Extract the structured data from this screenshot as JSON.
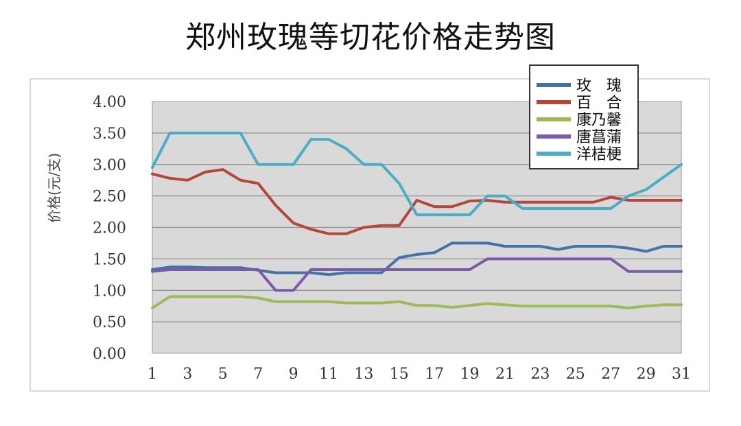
{
  "chart_data": {
    "type": "line",
    "title": "郑州玫瑰等切花价格走势图",
    "xlabel": "",
    "ylabel": "价格(元/支)",
    "x": [
      1,
      2,
      3,
      4,
      5,
      6,
      7,
      8,
      9,
      10,
      11,
      12,
      13,
      14,
      15,
      16,
      17,
      18,
      19,
      20,
      21,
      22,
      23,
      24,
      25,
      26,
      27,
      28,
      29,
      30,
      31
    ],
    "x_tick_labels": [
      "1",
      "3",
      "5",
      "7",
      "9",
      "11",
      "13",
      "15",
      "17",
      "19",
      "21",
      "23",
      "25",
      "27",
      "29",
      "31"
    ],
    "ylim": [
      0,
      4
    ],
    "y_tick_labels": [
      "0.00",
      "0.50",
      "1.00",
      "1.50",
      "2.00",
      "2.50",
      "3.00",
      "3.50",
      "4.00"
    ],
    "grid": true,
    "legend_position": "top-right",
    "series": [
      {
        "name": "玫　瑰",
        "color": "#4472a8",
        "values": [
          1.33,
          1.37,
          1.37,
          1.36,
          1.36,
          1.36,
          1.32,
          1.28,
          1.28,
          1.28,
          1.25,
          1.28,
          1.28,
          1.28,
          1.52,
          1.57,
          1.6,
          1.75,
          1.75,
          1.75,
          1.7,
          1.7,
          1.7,
          1.65,
          1.7,
          1.7,
          1.7,
          1.67,
          1.62,
          1.7,
          1.7
        ]
      },
      {
        "name": "百　合",
        "color": "#b5463a",
        "values": [
          2.85,
          2.78,
          2.75,
          2.88,
          2.92,
          2.75,
          2.7,
          2.35,
          2.07,
          1.97,
          1.9,
          1.9,
          2.0,
          2.03,
          2.03,
          2.43,
          2.33,
          2.33,
          2.42,
          2.43,
          2.4,
          2.4,
          2.4,
          2.4,
          2.4,
          2.4,
          2.48,
          2.43,
          2.43,
          2.43,
          2.43
        ]
      },
      {
        "name": "康乃馨",
        "color": "#9bbb59",
        "values": [
          0.72,
          0.9,
          0.9,
          0.9,
          0.9,
          0.9,
          0.88,
          0.82,
          0.82,
          0.82,
          0.82,
          0.8,
          0.8,
          0.8,
          0.82,
          0.76,
          0.76,
          0.73,
          0.76,
          0.79,
          0.77,
          0.75,
          0.75,
          0.75,
          0.75,
          0.75,
          0.75,
          0.72,
          0.75,
          0.77,
          0.77
        ]
      },
      {
        "name": "唐菖蒲",
        "color": "#7b5ba8",
        "values": [
          1.3,
          1.33,
          1.33,
          1.33,
          1.33,
          1.33,
          1.33,
          1.0,
          1.0,
          1.33,
          1.33,
          1.33,
          1.33,
          1.33,
          1.33,
          1.33,
          1.33,
          1.33,
          1.33,
          1.5,
          1.5,
          1.5,
          1.5,
          1.5,
          1.5,
          1.5,
          1.5,
          1.3,
          1.3,
          1.3,
          1.3
        ]
      },
      {
        "name": "洋桔梗",
        "color": "#4bacc6",
        "values": [
          2.95,
          3.5,
          3.5,
          3.5,
          3.5,
          3.5,
          3.0,
          3.0,
          3.0,
          3.4,
          3.4,
          3.25,
          3.0,
          3.0,
          2.7,
          2.2,
          2.2,
          2.2,
          2.2,
          2.5,
          2.5,
          2.3,
          2.3,
          2.3,
          2.3,
          2.3,
          2.3,
          2.5,
          2.6,
          2.8,
          3.0
        ]
      }
    ]
  }
}
